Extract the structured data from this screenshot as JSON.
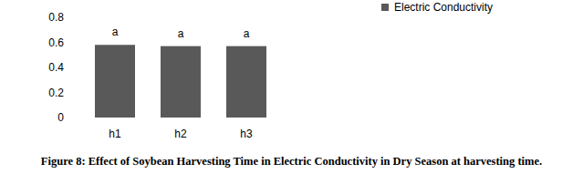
{
  "chart_data": {
    "type": "bar",
    "title": "Figure 8: Effect of Soybean Harvesting Time in Electric Conductivity in Dry Season at harvesting time.",
    "categories": [
      "h1",
      "h2",
      "h3"
    ],
    "series": [
      {
        "name": "Electric Conductivity",
        "color": "#595959",
        "values": [
          0.58,
          0.57,
          0.57
        ]
      }
    ],
    "annotations": [
      "a",
      "a",
      "a"
    ],
    "ylim": [
      0,
      0.8
    ],
    "yticks": [
      0,
      0.2,
      0.4,
      0.6,
      0.8
    ],
    "grid": false,
    "legend": "top-right"
  }
}
